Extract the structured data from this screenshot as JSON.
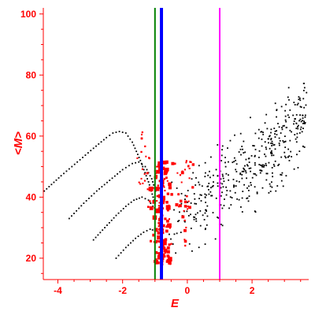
{
  "chart_data": {
    "type": "scatter",
    "xlabel": "E",
    "ylabel": "<M>",
    "xlim": [
      -4.45,
      3.75
    ],
    "ylim": [
      13,
      102
    ],
    "x_ticks": [
      -4,
      -2,
      0,
      2
    ],
    "y_ticks": [
      20,
      40,
      60,
      80,
      100
    ],
    "grid": false,
    "colors": {
      "axis": "#ff0000",
      "black_points": "#000000",
      "red_points": "#ff0000",
      "green_line": "#008000",
      "blue_line": "#0000ff",
      "magenta_line": "#ff00ff"
    },
    "vertical_lines": [
      {
        "x": -1.0,
        "color": "#008000"
      },
      {
        "x": -0.8,
        "color": "#0000ff"
      },
      {
        "x": 1.0,
        "color": "#ff00ff"
      }
    ],
    "series": [
      {
        "color": "#000000",
        "marker": "dot",
        "curves": [
          [
            [
              -4.42,
              42
            ],
            [
              -3.9,
              47
            ],
            [
              -3.4,
              51.5
            ],
            [
              -2.9,
              56
            ],
            [
              -2.5,
              59.5
            ],
            [
              -2.3,
              61
            ],
            [
              -2.1,
              61.5
            ],
            [
              -1.9,
              61
            ],
            [
              -1.7,
              58
            ],
            [
              -1.45,
              52
            ],
            [
              -1.2,
              45
            ],
            [
              -1.0,
              38
            ]
          ],
          [
            [
              -3.65,
              33
            ],
            [
              -3.2,
              38
            ],
            [
              -2.8,
              42
            ],
            [
              -2.4,
              45.5
            ],
            [
              -2.0,
              49
            ],
            [
              -1.7,
              51
            ],
            [
              -1.5,
              51.5
            ],
            [
              -1.3,
              50
            ],
            [
              -1.1,
              46
            ],
            [
              -0.95,
              41
            ]
          ],
          [
            [
              -2.9,
              26
            ],
            [
              -2.55,
              30
            ],
            [
              -2.2,
              34
            ],
            [
              -1.9,
              37
            ],
            [
              -1.65,
              39
            ],
            [
              -1.4,
              40
            ],
            [
              -1.2,
              39
            ],
            [
              -1.0,
              36
            ]
          ],
          [
            [
              -2.2,
              20
            ],
            [
              -1.9,
              23.5
            ],
            [
              -1.6,
              26.5
            ],
            [
              -1.35,
              28.5
            ],
            [
              -1.15,
              29.5
            ],
            [
              -1.0,
              29
            ]
          ]
        ],
        "cloud": {
          "x_range": [
            -0.6,
            3.7
          ],
          "trend": [
            [
              -0.6,
              34
            ],
            [
              0.5,
              38
            ],
            [
              1.5,
              48
            ],
            [
              2.5,
              54
            ],
            [
              3.5,
              65
            ]
          ],
          "spread": 8,
          "count": 430
        }
      },
      {
        "color": "#ff0000",
        "marker": "square",
        "clusters": [
          {
            "x_center": -0.8,
            "x_spread": 0.35,
            "y_range": [
              18,
              52
            ],
            "count": 150,
            "min_size": 2,
            "max_size": 6
          },
          {
            "x_center": -0.1,
            "x_spread": 0.45,
            "y_range": [
              22,
              52
            ],
            "count": 40,
            "min_size": 2,
            "max_size": 4
          },
          {
            "x_center": -1.35,
            "x_spread": 0.25,
            "y_range": [
              36,
              62
            ],
            "count": 20,
            "min_size": 2,
            "max_size": 3
          }
        ]
      }
    ]
  }
}
